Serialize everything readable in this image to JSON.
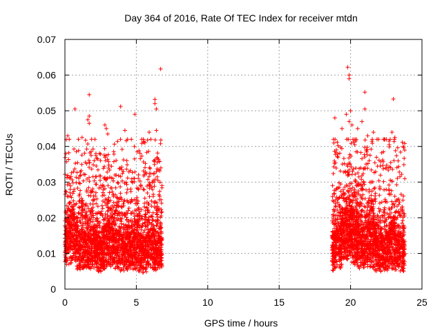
{
  "chart_data": {
    "type": "scatter",
    "title": "Day 364 of 2016, Rate Of TEC Index for receiver mtdn",
    "xlabel": "GPS time / hours",
    "ylabel": "ROTI / TECUs",
    "xlim": [
      0,
      25
    ],
    "ylim": [
      0,
      0.07
    ],
    "xticks": [
      0,
      5,
      10,
      15,
      20,
      25
    ],
    "xtick_labels": [
      "0",
      "5",
      "10",
      "15",
      "20",
      "25"
    ],
    "yticks": [
      0,
      0.01,
      0.02,
      0.03,
      0.04,
      0.05,
      0.06,
      0.07
    ],
    "ytick_labels": [
      "0",
      "0.01",
      "0.02",
      "0.03",
      "0.04",
      "0.05",
      "0.06",
      "0.07"
    ],
    "grid": true,
    "marker": "+",
    "color": "#ff0000",
    "series": [
      {
        "name": "ROTI",
        "segments": [
          {
            "x_range": [
              0.0,
              6.8
            ],
            "count": 2600,
            "profile": [
              [
                0.0,
                0.013
              ],
              [
                0.5,
                0.016
              ],
              [
                1.0,
                0.011
              ],
              [
                1.5,
                0.012
              ],
              [
                2.0,
                0.013
              ],
              [
                2.5,
                0.01
              ],
              [
                3.0,
                0.014
              ],
              [
                3.5,
                0.012
              ],
              [
                4.0,
                0.011
              ],
              [
                4.5,
                0.012
              ],
              [
                5.0,
                0.011
              ],
              [
                5.5,
                0.01
              ],
              [
                6.0,
                0.012
              ],
              [
                6.5,
                0.011
              ],
              [
                6.8,
                0.011
              ]
            ],
            "y_min": 0.003,
            "y_max": 0.042
          },
          {
            "x_range": [
              18.7,
              23.8
            ],
            "count": 2100,
            "profile": [
              [
                18.7,
                0.011
              ],
              [
                19.2,
                0.012
              ],
              [
                19.8,
                0.017
              ],
              [
                20.3,
                0.014
              ],
              [
                20.8,
                0.012
              ],
              [
                21.3,
                0.014
              ],
              [
                21.8,
                0.011
              ],
              [
                22.3,
                0.01
              ],
              [
                22.8,
                0.013
              ],
              [
                23.3,
                0.011
              ],
              [
                23.8,
                0.01
              ]
            ],
            "y_min": 0.0025,
            "y_max": 0.042
          }
        ],
        "outliers": [
          [
            6.7,
            0.0617
          ],
          [
            6.3,
            0.0532
          ],
          [
            6.3,
            0.052
          ],
          [
            6.4,
            0.0505
          ],
          [
            6.4,
            0.0445
          ],
          [
            1.7,
            0.0545
          ],
          [
            1.7,
            0.0485
          ],
          [
            1.6,
            0.0475
          ],
          [
            1.7,
            0.0465
          ],
          [
            0.7,
            0.0505
          ],
          [
            3.9,
            0.0512
          ],
          [
            4.9,
            0.049
          ],
          [
            2.8,
            0.046
          ],
          [
            2.9,
            0.045
          ],
          [
            4.2,
            0.0445
          ],
          [
            0.2,
            0.043
          ],
          [
            1.2,
            0.0425
          ],
          [
            3.0,
            0.0435
          ],
          [
            5.9,
            0.044
          ],
          [
            2.1,
            0.042
          ],
          [
            19.8,
            0.0622
          ],
          [
            19.9,
            0.06
          ],
          [
            19.9,
            0.059
          ],
          [
            20.0,
            0.05
          ],
          [
            19.7,
            0.049
          ],
          [
            21.0,
            0.0552
          ],
          [
            21.0,
            0.0505
          ],
          [
            23.0,
            0.0533
          ],
          [
            22.9,
            0.044
          ],
          [
            23.1,
            0.0425
          ],
          [
            19.9,
            0.047
          ],
          [
            20.1,
            0.046
          ],
          [
            20.5,
            0.045
          ],
          [
            21.6,
            0.044
          ],
          [
            18.9,
            0.048
          ],
          [
            20.8,
            0.047
          ],
          [
            22.3,
            0.042
          ],
          [
            19.4,
            0.045
          ],
          [
            21.2,
            0.043
          ],
          [
            22.7,
            0.0415
          ]
        ]
      }
    ]
  }
}
